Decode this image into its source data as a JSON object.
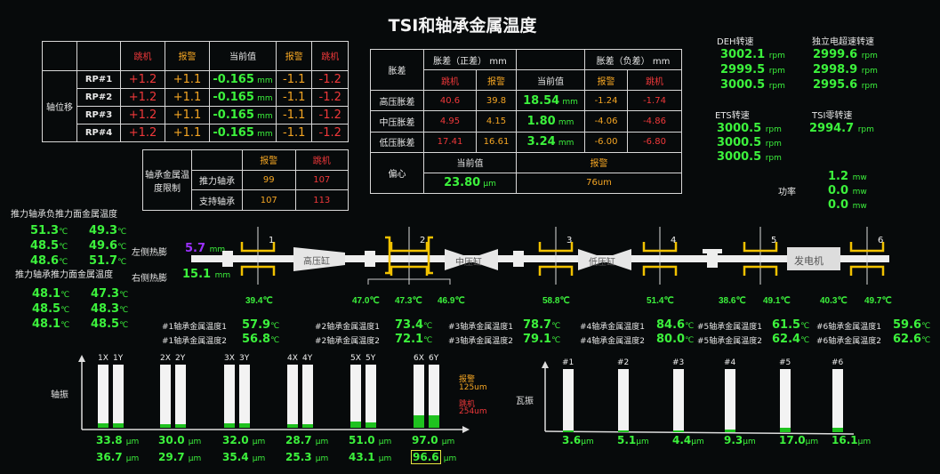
{
  "title": "TSI和轴承金属温度",
  "axial": {
    "group_label": "轴位移",
    "headers": [
      "跳机",
      "报警",
      "当前值",
      "报警",
      "跳机"
    ],
    "unit": "mm",
    "rows": [
      {
        "name": "RP#1",
        "trip_pos": "+1.2",
        "alarm_pos": "+1.1",
        "value": "-0.165",
        "alarm_neg": "-1.1",
        "trip_neg": "-1.2"
      },
      {
        "name": "RP#2",
        "trip_pos": "+1.2",
        "alarm_pos": "+1.1",
        "value": "-0.165",
        "alarm_neg": "-1.1",
        "trip_neg": "-1.2"
      },
      {
        "name": "RP#3",
        "trip_pos": "+1.2",
        "alarm_pos": "+1.1",
        "value": "-0.165",
        "alarm_neg": "-1.1",
        "trip_neg": "-1.2"
      },
      {
        "name": "RP#4",
        "trip_pos": "+1.2",
        "alarm_pos": "+1.1",
        "value": "-0.165",
        "alarm_neg": "-1.1",
        "trip_neg": "-1.2"
      }
    ]
  },
  "limits": {
    "label": "轴承金属温度限制",
    "alarm": "报警",
    "trip": "跳机",
    "rows": [
      {
        "name": "推力轴承",
        "alarm": "99",
        "trip": "107"
      },
      {
        "name": "支持轴承",
        "alarm": "107",
        "trip": "113"
      }
    ]
  },
  "diff": {
    "label": "胀差",
    "pos_header": "胀差（正差） mm",
    "neg_header": "胀差（负差） mm",
    "headers": [
      "跳机",
      "报警",
      "当前值",
      "报警",
      "跳机"
    ],
    "unit": "mm",
    "rows": [
      {
        "name": "高压胀差",
        "trip_pos": "40.6",
        "alarm_pos": "39.8",
        "value": "18.54",
        "alarm_neg": "-1.24",
        "trip_neg": "-1.74"
      },
      {
        "name": "中压胀差",
        "trip_pos": "4.95",
        "alarm_pos": "4.15",
        "value": "1.80",
        "alarm_neg": "-4.06",
        "trip_neg": "-4.86"
      },
      {
        "name": "低压胀差",
        "trip_pos": "17.41",
        "alarm_pos": "16.61",
        "value": "3.24",
        "alarm_neg": "-6.00",
        "trip_neg": "-6.80"
      }
    ],
    "ecc": {
      "label": "偏心",
      "current_label": "当前值",
      "alarm_label": "报警",
      "value": "23.80",
      "unit": "µm",
      "alarm": "76um"
    }
  },
  "speed": {
    "rpm": "rpm",
    "deh_label": "DEH转速",
    "deh": [
      "3002.1",
      "2999.5",
      "3000.5"
    ],
    "ind_label": "独立电超速转速",
    "ind": [
      "2999.6",
      "2998.9",
      "2995.6"
    ],
    "ets_label": "ETS转速",
    "ets": [
      "3000.5",
      "3000.5",
      "3000.5"
    ],
    "tsi_label": "TSI零转速",
    "tsi": "2994.7"
  },
  "power": {
    "label": "功率",
    "unit": "mw",
    "values": [
      "1.2",
      "0.0",
      "0.0"
    ]
  },
  "thrust": {
    "neg_label": "推力轴承负推力面金属温度",
    "neg": [
      "51.3",
      "49.3",
      "48.5",
      "49.6",
      "48.6",
      "51.7"
    ],
    "pos_label": "推力轴承推力面金属温度",
    "pos": [
      "48.1",
      "47.3",
      "48.5",
      "48.3",
      "48.1",
      "48.5"
    ],
    "unit": "℃"
  },
  "expansion": {
    "left_label": "左侧热膨",
    "left": "5.7",
    "right_label": "右侧热膨",
    "right": "15.1",
    "unit": "mm",
    "left_color": "#9b30ff"
  },
  "shaft": {
    "hp": "高压缸",
    "ip": "中压缸",
    "lp": "低压缸",
    "gen": "发电机",
    "bearings": [
      "1",
      "2",
      "3",
      "4",
      "5",
      "6"
    ],
    "temps": [
      "39.4℃",
      "47.0℃",
      "47.3℃",
      "46.9℃",
      "58.8℃",
      "51.4℃",
      "38.6℃",
      "49.1℃",
      "40.3℃",
      "49.7℃"
    ]
  },
  "bearing_temps": [
    {
      "l1": "#1轴承金属温度1",
      "v1": "57.9",
      "l2": "#1轴承金属温度2",
      "v2": "56.8"
    },
    {
      "l1": "#2轴承金属温度1",
      "v1": "73.4",
      "l2": "#2轴承金属温度2",
      "v2": "72.1"
    },
    {
      "l1": "#3轴承金属温度1",
      "v1": "78.7",
      "l2": "#3轴承金属温度2",
      "v2": "79.1"
    },
    {
      "l1": "#4轴承金属温度1",
      "v1": "84.6",
      "l2": "#4轴承金属温度2",
      "v2": "80.0"
    },
    {
      "l1": "#5轴承金属温度1",
      "v1": "61.5",
      "l2": "#5轴承金属温度2",
      "v2": "62.4"
    },
    {
      "l1": "#6轴承金属温度1",
      "v1": "59.6",
      "l2": "#6轴承金属温度2",
      "v2": "62.6"
    }
  ],
  "shaft_vib": {
    "label": "轴振",
    "unit": "µm",
    "alarm_label": "报警",
    "alarm": "125um",
    "trip_label": "跳机",
    "trip": "254um",
    "pairs": [
      {
        "x": "1X",
        "y": "1Y",
        "xv": 33.8,
        "yv": 36.7
      },
      {
        "x": "2X",
        "y": "2Y",
        "xv": 30.0,
        "yv": 29.7
      },
      {
        "x": "3X",
        "y": "3Y",
        "xv": 32.0,
        "yv": 35.4
      },
      {
        "x": "4X",
        "y": "4Y",
        "xv": 28.7,
        "yv": 25.3
      },
      {
        "x": "5X",
        "y": "5Y",
        "xv": 51.0,
        "yv": 43.1
      },
      {
        "x": "6X",
        "y": "6Y",
        "xv": 97.0,
        "yv": 96.6
      }
    ]
  },
  "bearing_vib": {
    "label": "瓦振",
    "unit": "µm",
    "items": [
      {
        "n": "#1",
        "v": 3.6
      },
      {
        "n": "#2",
        "v": 5.1
      },
      {
        "n": "#3",
        "v": 4.4
      },
      {
        "n": "#4",
        "v": 9.3
      },
      {
        "n": "#5",
        "v": 17.0
      },
      {
        "n": "#6",
        "v": 16.1
      }
    ]
  },
  "colors": {
    "value": "#3cf23c",
    "trip": "#f0383a",
    "alarm": "#f5a623",
    "fill": "#1fc21f"
  }
}
